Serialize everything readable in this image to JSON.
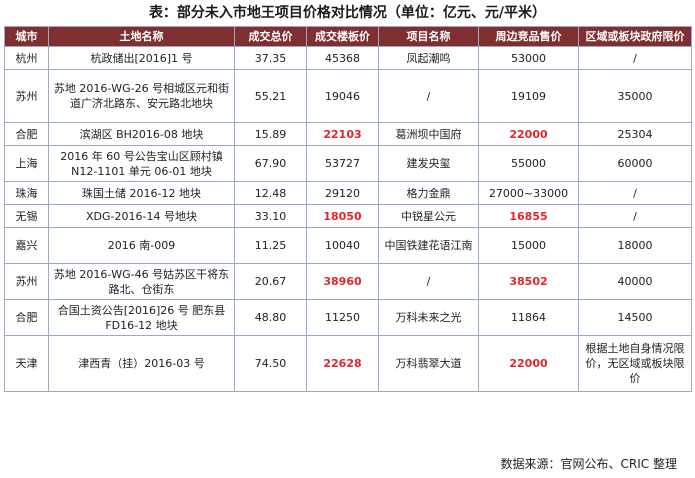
{
  "title": "表：部分未入市地王项目价格对比情况（单位：亿元、元/平米）",
  "headers": [
    "城市",
    "土地名称",
    "成交总价",
    "成交楼板价",
    "项目名称",
    "周边竞品售价",
    "区域或板块政府限价"
  ],
  "rows": [
    {
      "city": "杭州",
      "land": "杭政储出[2016]1 号",
      "total": "37.35",
      "floor": "45368",
      "project": "凤起潮鸣",
      "nearby": "53000",
      "limit": "/"
    },
    {
      "city": "苏州",
      "land": "苏地 2016-WG-26 号相城区元和街道广济北路东、安元路北地块",
      "total": "55.21",
      "floor": "19046",
      "project": "/",
      "nearby": "19109",
      "limit": "35000"
    },
    {
      "city": "合肥",
      "land": "滨湖区 BH2016-08 地块",
      "total": "15.89",
      "floor": "22103",
      "project": "葛洲坝中国府",
      "nearby": "22000",
      "limit": "25304"
    },
    {
      "city": "上海",
      "land": "2016 年 60 号公告宝山区顾村镇 N12-1101 单元 06-01 地块",
      "total": "67.90",
      "floor": "53727",
      "project": "建发央玺",
      "nearby": "55000",
      "limit": "60000"
    },
    {
      "city": "珠海",
      "land": "珠国土储 2016-12 地块",
      "total": "12.48",
      "floor": "29120",
      "project": "格力金鼎",
      "nearby": "27000~33000",
      "limit": "/"
    },
    {
      "city": "无锡",
      "land": "XDG-2016-14 号地块",
      "total": "33.10",
      "floor": "18050",
      "project": "中锐星公元",
      "nearby": "16855",
      "limit": "/"
    },
    {
      "city": "嘉兴",
      "land": "2016 南-009",
      "total": "11.25",
      "floor": "10040",
      "project": "中国铁建花语江南",
      "nearby": "15000",
      "limit": "18000"
    },
    {
      "city": "苏州",
      "land": "苏地 2016-WG-46 号姑苏区干将东路北、仓街东",
      "total": "20.67",
      "floor": "38960",
      "project": "/",
      "nearby": "38502",
      "limit": "40000"
    },
    {
      "city": "合肥",
      "land": "合国土资公告[2016]26 号 肥东县 FD16-12 地块",
      "total": "48.80",
      "floor": "11250",
      "project": "万科未来之光",
      "nearby": "11864",
      "limit": "14500"
    },
    {
      "city": "天津",
      "land": "津西青（挂）2016-03 号",
      "total": "74.50",
      "floor": "22628",
      "project": "万科翡翠大道",
      "nearby": "22000",
      "limit": "根据土地自身情况限价，无区域或板块限价"
    }
  ],
  "highlight_color": "#e3262a",
  "header_bg": "#7f2f2f",
  "source": "数据来源：官网公布、CRIC 整理"
}
